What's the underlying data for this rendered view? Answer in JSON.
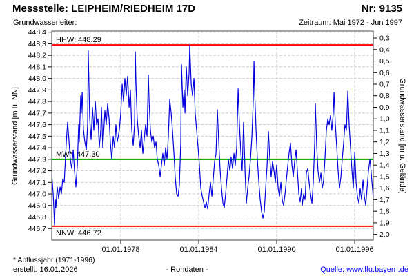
{
  "header": {
    "title": "Messstelle: LEIPHEIM/RIEDHEIM 17D",
    "number": "Nr: 9135",
    "aquifer_label": "Grundwasserleiter:",
    "period": "Zeitraum: Mai 1972 - Jun 1997"
  },
  "chart_data": {
    "type": "line",
    "left_axis": {
      "label": "Grundwasserstand [m ü. NN]",
      "min": 446.6,
      "max": 448.41,
      "tick_values": [
        448.4,
        448.3,
        448.2,
        448.1,
        448.0,
        447.9,
        447.8,
        447.7,
        447.6,
        447.5,
        447.4,
        447.3,
        447.2,
        447.1,
        447.0,
        446.9,
        446.8,
        446.7
      ],
      "decimal_separator": "comma"
    },
    "right_axis": {
      "label": "Grundwasserstand [m u. Gelände]",
      "tick_values": [
        0.3,
        0.4,
        0.5,
        0.6,
        0.7,
        0.8,
        0.9,
        1.0,
        1.1,
        1.2,
        1.3,
        1.4,
        1.5,
        1.6,
        1.7,
        1.8,
        1.9,
        2.0
      ],
      "surface_offset": 448.65,
      "decimal_separator": "comma"
    },
    "x_axis": {
      "min": 1972.69,
      "max": 1997.43,
      "ticks": [
        {
          "year": 1978,
          "label": "01.01.1978"
        },
        {
          "year": 1984,
          "label": "01.01.1984"
        },
        {
          "year": 1990,
          "label": "01.01.1990"
        },
        {
          "year": 1996,
          "label": "01.01.1996"
        }
      ]
    },
    "grid": {
      "color": "#cdcdcd",
      "dash": "4,2"
    },
    "frame_color": "#4a4a4a",
    "reference_lines": [
      {
        "name": "HHW",
        "value": 448.29,
        "label": "HHW: 448.29",
        "color": "#ff0000",
        "label_position": "above"
      },
      {
        "name": "MW",
        "value": 447.3,
        "label": "MW*: 447.30",
        "color": "#00a000",
        "label_position": "above"
      },
      {
        "name": "NNW",
        "value": 446.72,
        "label": "NNW: 446.72",
        "color": "#ff0000",
        "label_position": "below"
      }
    ],
    "series": [
      {
        "name": "Rohdaten",
        "color": "#0000dd",
        "points": [
          [
            1972.69,
            447.17
          ],
          [
            1972.8,
            447.0
          ],
          [
            1972.85,
            446.88
          ],
          [
            1972.9,
            446.73
          ],
          [
            1972.96,
            446.95
          ],
          [
            1973.01,
            446.88
          ],
          [
            1973.11,
            447.06
          ],
          [
            1973.22,
            446.96
          ],
          [
            1973.33,
            447.06
          ],
          [
            1973.43,
            447.0
          ],
          [
            1973.54,
            447.13
          ],
          [
            1973.65,
            447.1
          ],
          [
            1973.81,
            447.45
          ],
          [
            1973.91,
            447.62
          ],
          [
            1974.02,
            447.45
          ],
          [
            1974.12,
            447.3
          ],
          [
            1974.23,
            447.22
          ],
          [
            1974.34,
            447.38
          ],
          [
            1974.44,
            447.2
          ],
          [
            1974.55,
            447.06
          ],
          [
            1974.66,
            447.25
          ],
          [
            1974.76,
            447.6
          ],
          [
            1974.81,
            447.45
          ],
          [
            1974.92,
            447.85
          ],
          [
            1974.97,
            447.7
          ],
          [
            1975.03,
            447.88
          ],
          [
            1975.13,
            447.55
          ],
          [
            1975.24,
            447.45
          ],
          [
            1975.35,
            447.38
          ],
          [
            1975.45,
            447.6
          ],
          [
            1975.5,
            448.24
          ],
          [
            1975.56,
            447.9
          ],
          [
            1975.61,
            447.65
          ],
          [
            1975.72,
            447.47
          ],
          [
            1975.82,
            447.75
          ],
          [
            1975.93,
            447.55
          ],
          [
            1976.04,
            447.8
          ],
          [
            1976.14,
            447.6
          ],
          [
            1976.25,
            447.65
          ],
          [
            1976.35,
            447.4
          ],
          [
            1976.46,
            447.55
          ],
          [
            1976.51,
            447.75
          ],
          [
            1976.62,
            447.4
          ],
          [
            1976.78,
            447.72
          ],
          [
            1976.88,
            447.6
          ],
          [
            1976.99,
            447.78
          ],
          [
            1977.1,
            447.65
          ],
          [
            1977.2,
            447.45
          ],
          [
            1977.31,
            447.3
          ],
          [
            1977.42,
            447.5
          ],
          [
            1977.52,
            447.4
          ],
          [
            1977.63,
            447.6
          ],
          [
            1977.73,
            447.45
          ],
          [
            1977.89,
            447.55
          ],
          [
            1978.0,
            447.7
          ],
          [
            1978.11,
            447.95
          ],
          [
            1978.21,
            447.8
          ],
          [
            1978.32,
            448.0
          ],
          [
            1978.42,
            447.85
          ],
          [
            1978.53,
            448.02
          ],
          [
            1978.64,
            447.75
          ],
          [
            1978.74,
            447.9
          ],
          [
            1978.85,
            447.55
          ],
          [
            1978.96,
            447.42
          ],
          [
            1979.06,
            447.6
          ],
          [
            1979.12,
            448.23
          ],
          [
            1979.17,
            447.95
          ],
          [
            1979.27,
            447.65
          ],
          [
            1979.38,
            447.5
          ],
          [
            1979.49,
            447.4
          ],
          [
            1979.59,
            447.55
          ],
          [
            1979.7,
            447.35
          ],
          [
            1979.81,
            447.48
          ],
          [
            1979.91,
            447.6
          ],
          [
            1980.02,
            447.5
          ],
          [
            1980.12,
            448.03
          ],
          [
            1980.18,
            447.8
          ],
          [
            1980.28,
            447.55
          ],
          [
            1980.39,
            447.45
          ],
          [
            1980.5,
            447.5
          ],
          [
            1980.6,
            447.4
          ],
          [
            1980.71,
            447.45
          ],
          [
            1980.81,
            447.3
          ],
          [
            1980.92,
            447.25
          ],
          [
            1981.03,
            447.15
          ],
          [
            1981.13,
            447.25
          ],
          [
            1981.24,
            447.35
          ],
          [
            1981.35,
            447.25
          ],
          [
            1981.45,
            447.4
          ],
          [
            1981.56,
            447.3
          ],
          [
            1981.66,
            447.5
          ],
          [
            1981.77,
            447.82
          ],
          [
            1981.88,
            447.7
          ],
          [
            1981.98,
            447.55
          ],
          [
            1982.09,
            447.35
          ],
          [
            1982.19,
            447.15
          ],
          [
            1982.3,
            447.0
          ],
          [
            1982.41,
            446.98
          ],
          [
            1982.51,
            447.08
          ],
          [
            1982.62,
            447.45
          ],
          [
            1982.67,
            448.12
          ],
          [
            1982.78,
            447.75
          ],
          [
            1982.88,
            447.9
          ],
          [
            1982.94,
            447.7
          ],
          [
            1983.04,
            448.1
          ],
          [
            1983.15,
            447.85
          ],
          [
            1983.26,
            448.05
          ],
          [
            1983.31,
            448.29
          ],
          [
            1983.42,
            447.95
          ],
          [
            1983.52,
            447.85
          ],
          [
            1983.63,
            448.0
          ],
          [
            1983.73,
            447.7
          ],
          [
            1983.84,
            447.55
          ],
          [
            1983.95,
            447.4
          ],
          [
            1984.05,
            447.25
          ],
          [
            1984.16,
            447.05
          ],
          [
            1984.27,
            446.98
          ],
          [
            1984.37,
            446.93
          ],
          [
            1984.48,
            446.88
          ],
          [
            1984.58,
            446.93
          ],
          [
            1984.69,
            446.87
          ],
          [
            1984.8,
            447.0
          ],
          [
            1984.9,
            447.1
          ],
          [
            1985.01,
            446.98
          ],
          [
            1985.11,
            447.12
          ],
          [
            1985.22,
            447.28
          ],
          [
            1985.33,
            447.35
          ],
          [
            1985.43,
            447.73
          ],
          [
            1985.54,
            447.45
          ],
          [
            1985.65,
            447.2
          ],
          [
            1985.75,
            447.05
          ],
          [
            1985.86,
            446.92
          ],
          [
            1985.96,
            446.88
          ],
          [
            1986.07,
            447.0
          ],
          [
            1986.18,
            447.15
          ],
          [
            1986.28,
            447.3
          ],
          [
            1986.39,
            447.2
          ],
          [
            1986.49,
            447.32
          ],
          [
            1986.6,
            447.22
          ],
          [
            1986.71,
            447.35
          ],
          [
            1986.81,
            447.25
          ],
          [
            1986.92,
            447.4
          ],
          [
            1987.03,
            447.91
          ],
          [
            1987.13,
            447.6
          ],
          [
            1987.24,
            447.35
          ],
          [
            1987.34,
            447.2
          ],
          [
            1987.45,
            447.62
          ],
          [
            1987.56,
            447.2
          ],
          [
            1987.66,
            446.92
          ],
          [
            1987.77,
            447.05
          ],
          [
            1987.87,
            447.15
          ],
          [
            1987.98,
            447.3
          ],
          [
            1988.09,
            447.5
          ],
          [
            1988.19,
            447.8
          ],
          [
            1988.25,
            448.15
          ],
          [
            1988.3,
            447.9
          ],
          [
            1988.41,
            447.55
          ],
          [
            1988.51,
            447.3
          ],
          [
            1988.62,
            447.1
          ],
          [
            1988.73,
            446.95
          ],
          [
            1988.83,
            446.85
          ],
          [
            1988.94,
            446.79
          ],
          [
            1989.04,
            446.85
          ],
          [
            1989.15,
            447.05
          ],
          [
            1989.26,
            447.25
          ],
          [
            1989.36,
            447.54
          ],
          [
            1989.47,
            447.3
          ],
          [
            1989.57,
            447.15
          ],
          [
            1989.68,
            447.28
          ],
          [
            1989.79,
            447.2
          ],
          [
            1989.89,
            447.1
          ],
          [
            1990.0,
            447.25
          ],
          [
            1990.11,
            447.05
          ],
          [
            1990.21,
            446.98
          ],
          [
            1990.32,
            447.1
          ],
          [
            1990.42,
            446.95
          ],
          [
            1990.53,
            446.9
          ],
          [
            1990.64,
            447.0
          ],
          [
            1990.74,
            447.12
          ],
          [
            1990.85,
            447.25
          ],
          [
            1990.95,
            447.35
          ],
          [
            1991.06,
            447.44
          ],
          [
            1991.17,
            447.25
          ],
          [
            1991.27,
            447.15
          ],
          [
            1991.38,
            447.28
          ],
          [
            1991.49,
            447.38
          ],
          [
            1991.59,
            447.2
          ],
          [
            1991.7,
            447.0
          ],
          [
            1991.8,
            446.93
          ],
          [
            1991.91,
            447.05
          ],
          [
            1991.96,
            446.9
          ],
          [
            1992.07,
            447.0
          ],
          [
            1992.18,
            446.95
          ],
          [
            1992.28,
            447.18
          ],
          [
            1992.39,
            447.22
          ],
          [
            1992.49,
            447.1
          ],
          [
            1992.6,
            447.0
          ],
          [
            1992.71,
            446.92
          ],
          [
            1992.81,
            447.1
          ],
          [
            1992.92,
            447.45
          ],
          [
            1992.97,
            447.78
          ],
          [
            1993.08,
            447.4
          ],
          [
            1993.18,
            447.2
          ],
          [
            1993.29,
            447.1
          ],
          [
            1993.4,
            447.18
          ],
          [
            1993.5,
            447.05
          ],
          [
            1993.61,
            447.12
          ],
          [
            1993.71,
            447.3
          ],
          [
            1993.82,
            447.55
          ],
          [
            1993.93,
            447.65
          ],
          [
            1994.03,
            447.6
          ],
          [
            1994.14,
            447.68
          ],
          [
            1994.24,
            447.55
          ],
          [
            1994.35,
            447.7
          ],
          [
            1994.41,
            447.88
          ],
          [
            1994.51,
            447.6
          ],
          [
            1994.62,
            447.4
          ],
          [
            1994.72,
            447.2
          ],
          [
            1994.83,
            447.05
          ],
          [
            1994.94,
            447.15
          ],
          [
            1995.04,
            447.3
          ],
          [
            1995.15,
            447.45
          ],
          [
            1995.25,
            447.6
          ],
          [
            1995.36,
            447.55
          ],
          [
            1995.47,
            447.89
          ],
          [
            1995.57,
            447.6
          ],
          [
            1995.68,
            447.4
          ],
          [
            1995.79,
            447.2
          ],
          [
            1995.89,
            447.05
          ],
          [
            1996.0,
            447.36
          ],
          [
            1996.11,
            447.1
          ],
          [
            1996.21,
            446.98
          ],
          [
            1996.32,
            446.92
          ],
          [
            1996.42,
            447.05
          ],
          [
            1996.53,
            446.95
          ],
          [
            1996.64,
            447.12
          ],
          [
            1996.74,
            446.98
          ],
          [
            1996.85,
            446.9
          ],
          [
            1996.95,
            447.05
          ],
          [
            1997.06,
            447.2
          ],
          [
            1997.17,
            447.3
          ],
          [
            1997.22,
            447.25
          ],
          [
            1997.33,
            447.1
          ],
          [
            1997.43,
            446.97
          ]
        ]
      }
    ]
  },
  "footer": {
    "note": "* Abflussjahr (1971-1996)",
    "created": "erstellt:  16.01.2026",
    "center": "- Rohdaten -",
    "source": "Quelle: www.lfu.bayern.de",
    "source_color": "#0000ff"
  }
}
